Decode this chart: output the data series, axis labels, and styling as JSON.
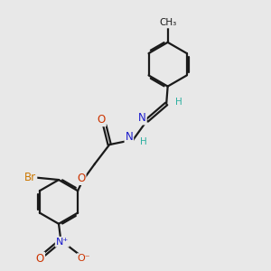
{
  "bg_color": "#e8e8e8",
  "bond_color": "#1a1a1a",
  "bond_width": 1.6,
  "atom_colors": {
    "C": "#1a1a1a",
    "H": "#2db0a0",
    "N": "#1a1acc",
    "O": "#cc3300",
    "Br": "#cc7700"
  },
  "font_size": 8.5,
  "fig_width": 3.0,
  "fig_height": 3.0,
  "xlim": [
    0,
    10
  ],
  "ylim": [
    0,
    10
  ]
}
